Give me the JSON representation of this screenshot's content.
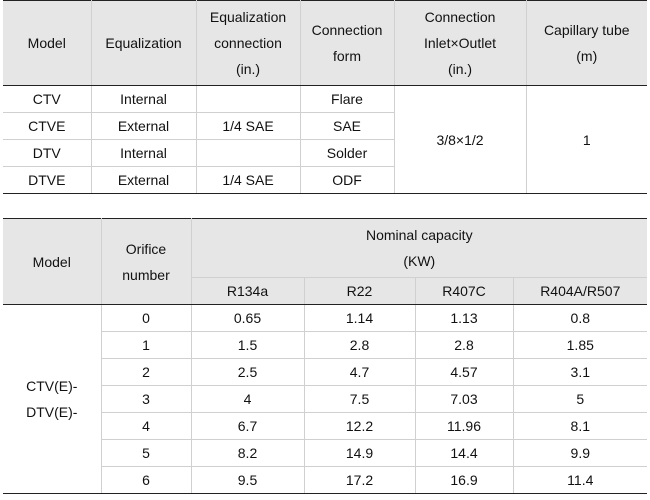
{
  "table1": {
    "headers": {
      "model": "Model",
      "equalization": "Equalization",
      "eq_conn_1": "Equalization",
      "eq_conn_2": "connection",
      "eq_conn_3": "(in.)",
      "conn_form_1": "Connection",
      "conn_form_2": "form",
      "inlet_1": "Connection",
      "inlet_2": "Inlet×Outlet",
      "inlet_3": "(in.)",
      "capillary_1": "Capillary tube",
      "capillary_2": "(m)"
    },
    "rows": [
      {
        "model": "CTV",
        "equalization": "Internal",
        "eq_conn": ""
      },
      {
        "model": "CTVE",
        "equalization": "External",
        "eq_conn": "1/4 SAE"
      },
      {
        "model": "DTV",
        "equalization": "Internal",
        "eq_conn": ""
      },
      {
        "model": "DTVE",
        "equalization": "External",
        "eq_conn": "1/4 SAE"
      }
    ],
    "conn_form_flare_1": "Flare",
    "conn_form_flare_2": "SAE",
    "conn_form_solder_1": "Solder",
    "conn_form_solder_2": "ODF",
    "inlet_outlet": "3/8×1/2",
    "capillary_tube": "1"
  },
  "table2": {
    "headers": {
      "model": "Model",
      "orifice_1": "Orifice",
      "orifice_2": "number",
      "capacity_1": "Nominal capacity",
      "capacity_2": "(KW)",
      "refrigerants": [
        "R134a",
        "R22",
        "R407C",
        "R404A/R507"
      ]
    },
    "model_1": "CTV(E)-",
    "model_2": "DTV(E)-",
    "rows": [
      {
        "orifice": "0",
        "values": [
          "0.65",
          "1.14",
          "1.13",
          "0.8"
        ]
      },
      {
        "orifice": "1",
        "values": [
          "1.5",
          "2.8",
          "2.8",
          "1.85"
        ]
      },
      {
        "orifice": "2",
        "values": [
          "2.5",
          "4.7",
          "4.57",
          "3.1"
        ]
      },
      {
        "orifice": "3",
        "values": [
          "4",
          "7.5",
          "7.03",
          "5"
        ]
      },
      {
        "orifice": "4",
        "values": [
          "6.7",
          "12.2",
          "11.96",
          "8.1"
        ]
      },
      {
        "orifice": "5",
        "values": [
          "8.2",
          "14.9",
          "14.4",
          "9.9"
        ]
      },
      {
        "orifice": "6",
        "values": [
          "9.5",
          "17.2",
          "16.9",
          "11.4"
        ]
      }
    ]
  }
}
